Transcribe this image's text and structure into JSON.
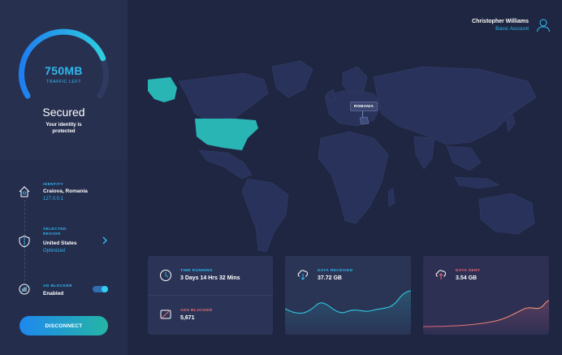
{
  "sidebar": {
    "traffic": {
      "value": "750MB",
      "label": "TRAFFIC LEFT",
      "remaining_fraction": 0.78
    },
    "status": {
      "title": "Secured",
      "subtitle": "Your identity is protected"
    },
    "identity": {
      "label": "IDENTITY",
      "location": "Craiova, Romania",
      "ip": "127.0.0.1"
    },
    "region": {
      "label": "SELECTED REGION",
      "value": "United States",
      "sub": "Optimized"
    },
    "ad_blocker": {
      "label": "AD BLOCKER",
      "value": "Enabled",
      "enabled": true
    },
    "disconnect_label": "DISCONNECT"
  },
  "header": {
    "user_name": "Christopher Williams",
    "account_type": "Basic Account"
  },
  "map": {
    "tag": "ROMANIA",
    "highlight_color": "#2ab5b5"
  },
  "stats": {
    "time_running": {
      "label": "TIME RUNNING",
      "value": "3 Days 14 Hrs 32 Mins"
    },
    "ads_blocked": {
      "label": "ADS BLOCKED",
      "value": "5,671"
    },
    "data_received": {
      "label": "DATA RECEIVED",
      "value": "37.72 GB"
    },
    "data_sent": {
      "label": "DATA SENT",
      "value": "3.54 GB"
    }
  },
  "colors": {
    "accent": "#2fb8f0",
    "teal": "#2ab5b5",
    "alert": "#f06a7a",
    "sent": "#f08a6a"
  }
}
